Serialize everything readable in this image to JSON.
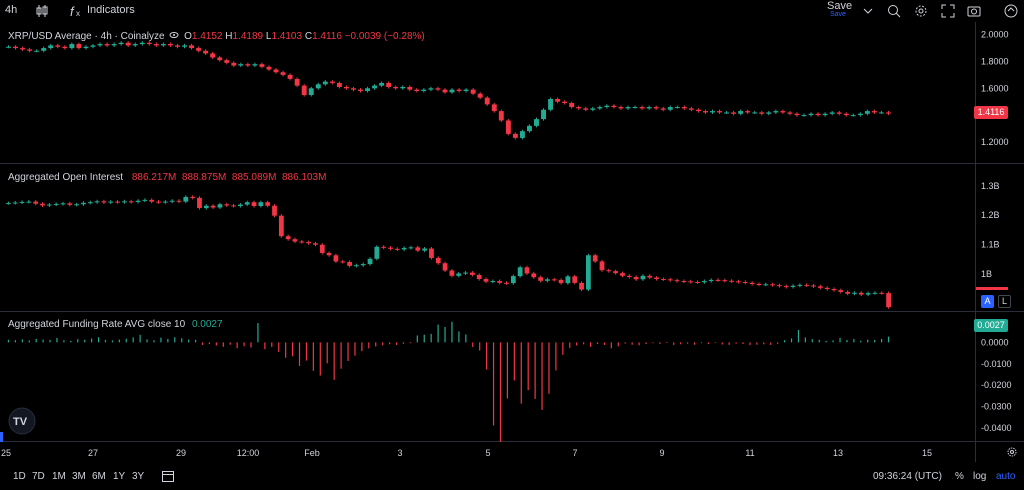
{
  "toolbar": {
    "interval": "4h",
    "indicators_label": "Indicators",
    "save_label": "Save",
    "save_sub": "Save"
  },
  "panes": {
    "price": {
      "title": "XRP/USD Average · 4h · Coinalyze",
      "o_label": "O",
      "o": "1.4152",
      "h_label": "H",
      "h": "1.4189",
      "l_label": "L",
      "l": "1.4103",
      "c_label": "C",
      "c": "1.4116",
      "change": "−0.0039 (−0.28%)",
      "last_tag": "1.4116"
    },
    "oi": {
      "title": "Aggregated Open Interest",
      "values": "886.217M  888.875M  885.089M  886.103M"
    },
    "funding": {
      "title": "Aggregated Funding Rate AVG close 10",
      "value": "0.0027",
      "last_tag": "0.0027"
    }
  },
  "scale_buttons": {
    "a": "A",
    "l": "L"
  },
  "bottom": {
    "ranges": [
      "1D",
      "7D",
      "1M",
      "3M",
      "6M",
      "1Y",
      "3Y"
    ],
    "time": "09:36:24 (UTC)",
    "percent": "%",
    "log": "log",
    "auto": "auto"
  },
  "colors": {
    "up": "#22ab94",
    "down": "#f23645",
    "bg": "#000000",
    "accent": "#2962ff"
  },
  "chart_data": [
    {
      "type": "candlestick",
      "title": "XRP/USD Average · 4h · Coinalyze",
      "x_ticks": [
        "25",
        "27",
        "29",
        "12:00",
        "Feb",
        "3",
        "5",
        "7",
        "9",
        "11",
        "13",
        "15"
      ],
      "y_ticks": [
        "2.0000",
        "1.8000",
        "1.6000",
        "1.4000",
        "1.2000"
      ],
      "ylim": [
        1.08,
        2.02
      ],
      "close": [
        1.91,
        1.9,
        1.89,
        1.88,
        1.88,
        1.9,
        1.92,
        1.91,
        1.9,
        1.93,
        1.9,
        1.91,
        1.92,
        1.93,
        1.92,
        1.93,
        1.94,
        1.92,
        1.93,
        1.94,
        1.93,
        1.92,
        1.93,
        1.92,
        1.91,
        1.92,
        1.9,
        1.88,
        1.86,
        1.83,
        1.81,
        1.79,
        1.77,
        1.78,
        1.77,
        1.78,
        1.76,
        1.74,
        1.72,
        1.7,
        1.67,
        1.62,
        1.55,
        1.6,
        1.63,
        1.65,
        1.64,
        1.61,
        1.6,
        1.59,
        1.58,
        1.6,
        1.62,
        1.64,
        1.61,
        1.6,
        1.61,
        1.59,
        1.58,
        1.59,
        1.6,
        1.59,
        1.57,
        1.59,
        1.58,
        1.59,
        1.56,
        1.53,
        1.48,
        1.43,
        1.36,
        1.26,
        1.23,
        1.28,
        1.32,
        1.37,
        1.44,
        1.52,
        1.5,
        1.49,
        1.46,
        1.45,
        1.44,
        1.45,
        1.46,
        1.47,
        1.46,
        1.45,
        1.46,
        1.46,
        1.45,
        1.46,
        1.45,
        1.44,
        1.46,
        1.46,
        1.45,
        1.44,
        1.43,
        1.42,
        1.43,
        1.42,
        1.42,
        1.41,
        1.43,
        1.42,
        1.42,
        1.41,
        1.42,
        1.43,
        1.42,
        1.41,
        1.4,
        1.4,
        1.41,
        1.4,
        1.41,
        1.42,
        1.41,
        1.4,
        1.4,
        1.41,
        1.43,
        1.42,
        1.42,
        1.4116
      ]
    },
    {
      "type": "candlestick",
      "title": "Aggregated Open Interest",
      "y_ticks": [
        "1.3B",
        "1.2B",
        "1.1B",
        "1B"
      ],
      "ylim": [
        0.89,
        1.33
      ],
      "close": [
        1.241,
        1.243,
        1.245,
        1.246,
        1.239,
        1.233,
        1.236,
        1.238,
        1.24,
        1.235,
        1.237,
        1.242,
        1.244,
        1.247,
        1.243,
        1.246,
        1.244,
        1.247,
        1.245,
        1.249,
        1.252,
        1.246,
        1.244,
        1.246,
        1.249,
        1.246,
        1.262,
        1.259,
        1.224,
        1.232,
        1.226,
        1.237,
        1.233,
        1.231,
        1.236,
        1.244,
        1.231,
        1.244,
        1.232,
        1.198,
        1.128,
        1.118,
        1.11,
        1.108,
        1.104,
        1.099,
        1.071,
        1.063,
        1.042,
        1.04,
        1.027,
        1.029,
        1.033,
        1.051,
        1.092,
        1.089,
        1.085,
        1.083,
        1.088,
        1.09,
        1.079,
        1.086,
        1.054,
        1.036,
        1.011,
        0.993,
        1.001,
        1.004,
        0.996,
        0.982,
        0.973,
        0.975,
        0.969,
        0.968,
        0.992,
        1.022,
        1.001,
        0.988,
        0.976,
        0.981,
        0.979,
        0.968,
        0.991,
        0.969,
        0.946,
        1.063,
        1.042,
        1.012,
        1.009,
        1.002,
        0.993,
        0.989,
        0.981,
        0.993,
        0.987,
        0.982,
        0.981,
        0.978,
        0.975,
        0.974,
        0.972,
        0.971,
        0.975,
        0.979,
        0.978,
        0.976,
        0.974,
        0.972,
        0.969,
        0.965,
        0.963,
        0.964,
        0.961,
        0.958,
        0.955,
        0.959,
        0.962,
        0.96,
        0.957,
        0.952,
        0.948,
        0.944,
        0.938,
        0.932,
        0.935,
        0.929,
        0.934,
        0.935,
        0.934,
        0.886
      ]
    },
    {
      "type": "bar",
      "title": "Aggregated Funding Rate AVG close 10",
      "y_ticks": [
        "0.0000",
        "-0.0100",
        "-0.0200",
        "-0.0300",
        "-0.0400"
      ],
      "ylim": [
        -0.0465,
        0.0095
      ],
      "values": [
        0.0012,
        0.001,
        0.0014,
        0.0009,
        0.0016,
        0.0013,
        0.0011,
        0.0021,
        0.001,
        0.0007,
        0.0015,
        0.0012,
        0.0018,
        0.0024,
        0.0011,
        0.0009,
        0.0013,
        0.0017,
        0.0023,
        0.0035,
        0.0014,
        0.001,
        0.0022,
        0.0016,
        0.0024,
        0.0019,
        0.0013,
        0.0012,
        -0.0012,
        -0.0008,
        -0.0015,
        -0.0021,
        -0.0011,
        -0.0027,
        -0.0018,
        -0.0024,
        0.009,
        -0.0032,
        -0.0021,
        -0.0045,
        -0.0072,
        -0.0065,
        -0.011,
        -0.0085,
        -0.0133,
        -0.0155,
        -0.0098,
        -0.0175,
        -0.0123,
        -0.0087,
        -0.0062,
        -0.0041,
        -0.0028,
        -0.0019,
        -0.0014,
        -0.0009,
        -0.0012,
        -0.0007,
        -0.0004,
        0.0032,
        0.0036,
        0.004,
        0.0083,
        0.0072,
        0.0096,
        0.0051,
        0.0037,
        -0.0022,
        -0.0038,
        -0.0127,
        -0.0388,
        -0.0465,
        -0.0262,
        -0.0178,
        -0.0286,
        -0.0223,
        -0.0264,
        -0.0315,
        -0.024,
        -0.0131,
        -0.0058,
        -0.0026,
        -0.0015,
        -0.0009,
        -0.0021,
        -0.0008,
        -0.0012,
        -0.0028,
        -0.0018,
        -0.0006,
        -0.0011,
        -0.0014,
        -0.0008,
        -0.0004,
        -0.0007,
        -0.0003,
        -0.0012,
        -0.0009,
        -0.0006,
        -0.0011,
        -0.0004,
        -0.0008,
        -0.0003,
        -0.001,
        -0.0012,
        -0.0006,
        -0.0008,
        -0.0013,
        -0.0011,
        -0.0009,
        -0.0012,
        -0.0007,
        0.001,
        0.0018,
        0.0058,
        0.0023,
        0.0015,
        0.0012,
        0.0007,
        0.0009,
        0.0021,
        0.0011,
        0.0016,
        0.0008,
        0.0013,
        0.0011,
        0.0016,
        0.0027
      ]
    }
  ]
}
